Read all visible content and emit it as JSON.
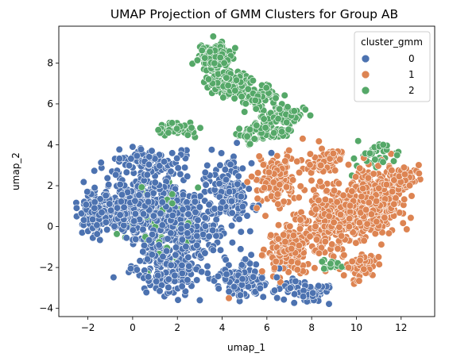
{
  "chart_data": {
    "type": "scatter",
    "title": "UMAP Projection of GMM Clusters for Group AB",
    "xlabel": "umap_1",
    "ylabel": "umap_2",
    "xlim": [
      -3.3,
      13.5
    ],
    "ylim": [
      -4.4,
      9.8
    ],
    "xticks": [
      -2,
      0,
      2,
      4,
      6,
      8,
      10,
      12
    ],
    "yticks": [
      -4,
      -2,
      0,
      2,
      4,
      6,
      8
    ],
    "grid": false,
    "legend": {
      "title": "cluster_gmm",
      "placement": "top-right",
      "entries": [
        "0",
        "1",
        "2"
      ]
    },
    "colors": {
      "0": "#4c72b0",
      "1": "#dd8452",
      "2": "#55a868"
    },
    "point_edge_color": "#ffffff",
    "series": [
      {
        "name": "0",
        "color": "#4c72b0",
        "regions": [
          {
            "center": [
              0.3,
              1.0
            ],
            "spread": [
              1.6,
              1.4
            ],
            "count": 420
          },
          {
            "center": [
              2.3,
              0.0
            ],
            "spread": [
              1.2,
              1.5
            ],
            "count": 280
          },
          {
            "center": [
              1.5,
              -2.3
            ],
            "spread": [
              1.2,
              0.8
            ],
            "count": 150
          },
          {
            "center": [
              -1.6,
              0.7
            ],
            "spread": [
              0.6,
              0.9
            ],
            "count": 120
          },
          {
            "center": [
              4.2,
              1.5
            ],
            "spread": [
              0.9,
              1.5
            ],
            "count": 160
          },
          {
            "center": [
              4.8,
              -2.5
            ],
            "spread": [
              1.2,
              0.8
            ],
            "count": 110
          },
          {
            "center": [
              7.6,
              -3.1
            ],
            "spread": [
              1.1,
              0.4
            ],
            "count": 70
          },
          {
            "center": [
              0.8,
              3.2
            ],
            "spread": [
              1.3,
              0.6
            ],
            "count": 90
          }
        ],
        "sample_points": [
          [
            -2.5,
            0.5
          ],
          [
            0.0,
            3.9
          ],
          [
            3.0,
            -3.6
          ],
          [
            6.2,
            3.6
          ],
          [
            8.1,
            -3.6
          ]
        ]
      },
      {
        "name": "1",
        "color": "#dd8452",
        "regions": [
          {
            "center": [
              10.7,
              1.2
            ],
            "spread": [
              1.1,
              1.4
            ],
            "count": 300
          },
          {
            "center": [
              8.8,
              0.3
            ],
            "spread": [
              1.1,
              1.4
            ],
            "count": 260
          },
          {
            "center": [
              7.0,
              -1.2
            ],
            "spread": [
              0.9,
              1.1
            ],
            "count": 170
          },
          {
            "center": [
              6.4,
              2.2
            ],
            "spread": [
              0.8,
              1.0
            ],
            "count": 120
          },
          {
            "center": [
              12.0,
              2.4
            ],
            "spread": [
              0.6,
              0.6
            ],
            "count": 70
          },
          {
            "center": [
              8.5,
              3.2
            ],
            "spread": [
              0.8,
              0.5
            ],
            "count": 70
          },
          {
            "center": [
              10.2,
              -2.0
            ],
            "spread": [
              0.6,
              0.6
            ],
            "count": 60
          }
        ],
        "sample_points": [
          [
            12.8,
            2.6
          ],
          [
            4.3,
            -3.5
          ],
          [
            9.9,
            -2.8
          ],
          [
            7.6,
            4.3
          ]
        ]
      },
      {
        "name": "2",
        "color": "#55a868",
        "regions": [
          {
            "center": [
              3.7,
              8.3
            ],
            "spread": [
              0.6,
              0.5
            ],
            "count": 180
          },
          {
            "center": [
              4.4,
              7.0
            ],
            "spread": [
              0.8,
              0.5
            ],
            "count": 150
          },
          {
            "center": [
              5.6,
              6.3
            ],
            "spread": [
              0.7,
              0.4
            ],
            "count": 90
          },
          {
            "center": [
              6.8,
              5.4
            ],
            "spread": [
              0.8,
              0.4
            ],
            "count": 80
          },
          {
            "center": [
              1.8,
              4.8
            ],
            "spread": [
              0.8,
              0.25
            ],
            "count": 40
          },
          {
            "center": [
              5.6,
              4.6
            ],
            "spread": [
              1.0,
              0.4
            ],
            "count": 60
          },
          {
            "center": [
              10.8,
              3.5
            ],
            "spread": [
              0.8,
              0.5
            ],
            "count": 35
          },
          {
            "center": [
              8.9,
              -1.9
            ],
            "spread": [
              0.4,
              0.3
            ],
            "count": 15
          },
          {
            "center": [
              1.5,
              0.5
            ],
            "spread": [
              1.8,
              1.8
            ],
            "count": 40
          }
        ],
        "sample_points": [
          [
            3.6,
            9.3
          ],
          [
            11.2,
            4.0
          ],
          [
            9.8,
            2.5
          ],
          [
            -1.7,
            1.9
          ]
        ]
      }
    ]
  }
}
